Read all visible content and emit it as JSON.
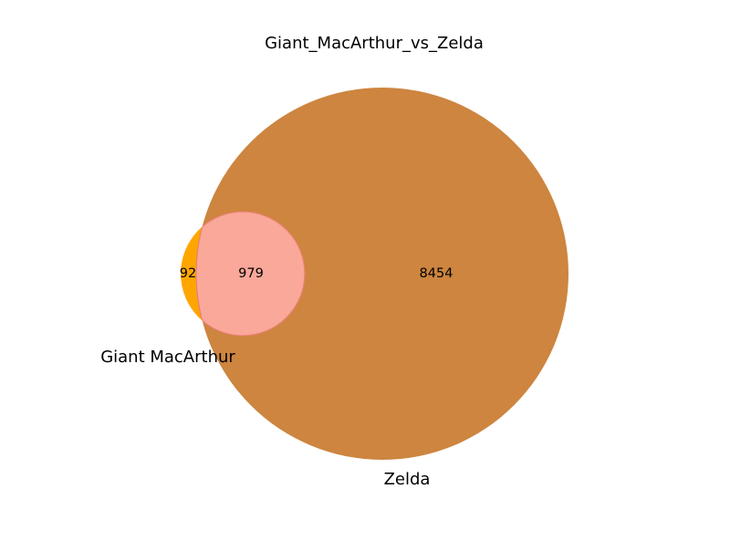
{
  "chart_data": {
    "type": "venn",
    "title": "Giant_MacArthur_vs_Zelda",
    "sets": [
      {
        "name": "Giant MacArthur",
        "color": "#ffa500"
      },
      {
        "name": "Zelda",
        "color": "#cd853f"
      }
    ],
    "regions": {
      "only_a": 92,
      "both": 979,
      "only_b": 8454
    },
    "colors": {
      "set_a": "#ffa500",
      "set_b": "#cd853f",
      "intersection": "#f9a89a",
      "intersection_edge": "#e8816e"
    }
  }
}
